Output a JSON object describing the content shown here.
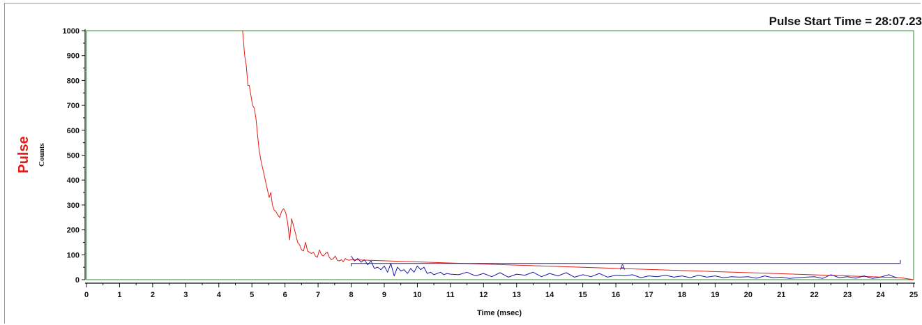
{
  "chart_data": {
    "type": "line",
    "title": "Pulse Start Time = 28:07.23",
    "ylabel": "Pulse",
    "ylabel_sub": "Counts",
    "xlabel": "Time (msec)",
    "xlim": [
      0,
      25
    ],
    "ylim": [
      0,
      1000
    ],
    "x_ticks": [
      "0",
      "1",
      "2",
      "3",
      "4",
      "5",
      "6",
      "7",
      "8",
      "9",
      "10",
      "11",
      "12",
      "13",
      "14",
      "15",
      "16",
      "17",
      "18",
      "19",
      "20",
      "21",
      "22",
      "23",
      "24",
      "25"
    ],
    "y_ticks": [
      "0",
      "100",
      "200",
      "300",
      "400",
      "500",
      "600",
      "700",
      "800",
      "900",
      "1000"
    ],
    "grid": false,
    "colors": {
      "pulse": "#e41b17",
      "fit": "#1a1aa8",
      "frame": "#2e8b2e"
    },
    "series": [
      {
        "name": "Pulse",
        "color": "#e41b17",
        "x": [
          4.72,
          4.78,
          4.83,
          4.88,
          4.92,
          4.97,
          5.02,
          5.07,
          5.12,
          5.17,
          5.22,
          5.27,
          5.32,
          5.37,
          5.42,
          5.47,
          5.52,
          5.57,
          5.62,
          5.67,
          5.72,
          5.78,
          5.84,
          5.9,
          5.96,
          6.02,
          6.08,
          6.14,
          6.2,
          6.26,
          6.32,
          6.38,
          6.44,
          6.5,
          6.56,
          6.62,
          6.68,
          6.74,
          6.8,
          6.86,
          6.92,
          6.98,
          7.04,
          7.1,
          7.16,
          7.22,
          7.28,
          7.34,
          7.4,
          7.46,
          7.52,
          7.58,
          7.64,
          7.7,
          7.76,
          7.82,
          7.88,
          7.94,
          8.0,
          24.6,
          24.7,
          24.8,
          24.9,
          25.0
        ],
        "y": [
          1000,
          900,
          860,
          780,
          780,
          740,
          700,
          690,
          650,
          580,
          520,
          480,
          450,
          420,
          390,
          360,
          330,
          350,
          300,
          280,
          275,
          260,
          250,
          275,
          285,
          270,
          230,
          160,
          245,
          215,
          185,
          150,
          140,
          120,
          115,
          150,
          115,
          110,
          105,
          110,
          95,
          90,
          120,
          100,
          95,
          105,
          110,
          90,
          80,
          85,
          95,
          78,
          75,
          80,
          72,
          85,
          80,
          78,
          80,
          8,
          6,
          4,
          2,
          0
        ]
      },
      {
        "name": "",
        "color": "#1a1aa8",
        "x": [
          8.0,
          8.1,
          8.2,
          8.3,
          8.4,
          8.5,
          8.6,
          8.7,
          8.8,
          8.9,
          9.0,
          9.1,
          9.2,
          9.3,
          9.4,
          9.5,
          9.6,
          9.7,
          9.8,
          9.9,
          10.0,
          10.1,
          10.2,
          10.3,
          10.4,
          10.5,
          10.6,
          10.7,
          10.8,
          10.9,
          11.0,
          11.25,
          11.5,
          11.75,
          12.0,
          12.25,
          12.5,
          12.75,
          13.0,
          13.25,
          13.5,
          13.75,
          14.0,
          14.25,
          14.5,
          14.75,
          15.0,
          15.25,
          15.5,
          15.75,
          16.0,
          16.25,
          16.5,
          16.75,
          17.0,
          17.25,
          17.5,
          17.75,
          18.0,
          18.25,
          18.5,
          18.75,
          19.0,
          19.25,
          19.5,
          19.75,
          20.0,
          20.25,
          20.5,
          20.75,
          21.0,
          21.25,
          21.5,
          21.75,
          22.0,
          22.25,
          22.5,
          22.75,
          23.0,
          23.25,
          23.5,
          23.75,
          24.0,
          24.25,
          24.4,
          24.5
        ],
        "y": [
          95,
          75,
          85,
          70,
          80,
          60,
          75,
          45,
          50,
          40,
          55,
          30,
          65,
          15,
          50,
          35,
          40,
          25,
          45,
          30,
          55,
          40,
          50,
          25,
          30,
          20,
          25,
          30,
          20,
          25,
          22,
          20,
          30,
          15,
          25,
          12,
          28,
          10,
          22,
          18,
          30,
          12,
          25,
          15,
          28,
          10,
          20,
          12,
          25,
          10,
          18,
          15,
          20,
          8,
          15,
          12,
          18,
          10,
          15,
          8,
          18,
          10,
          15,
          8,
          12,
          10,
          12,
          6,
          15,
          8,
          10,
          5,
          8,
          10,
          12,
          5,
          20,
          8,
          12,
          6,
          15,
          5,
          10,
          20,
          12,
          8
        ]
      },
      {
        "name": "",
        "color": "#1a1aa8",
        "x": [
          8.0,
          24.6
        ],
        "y": [
          65,
          65
        ]
      }
    ],
    "annotations": [
      {
        "text": "A",
        "x": 16.2,
        "y": 40
      }
    ]
  }
}
